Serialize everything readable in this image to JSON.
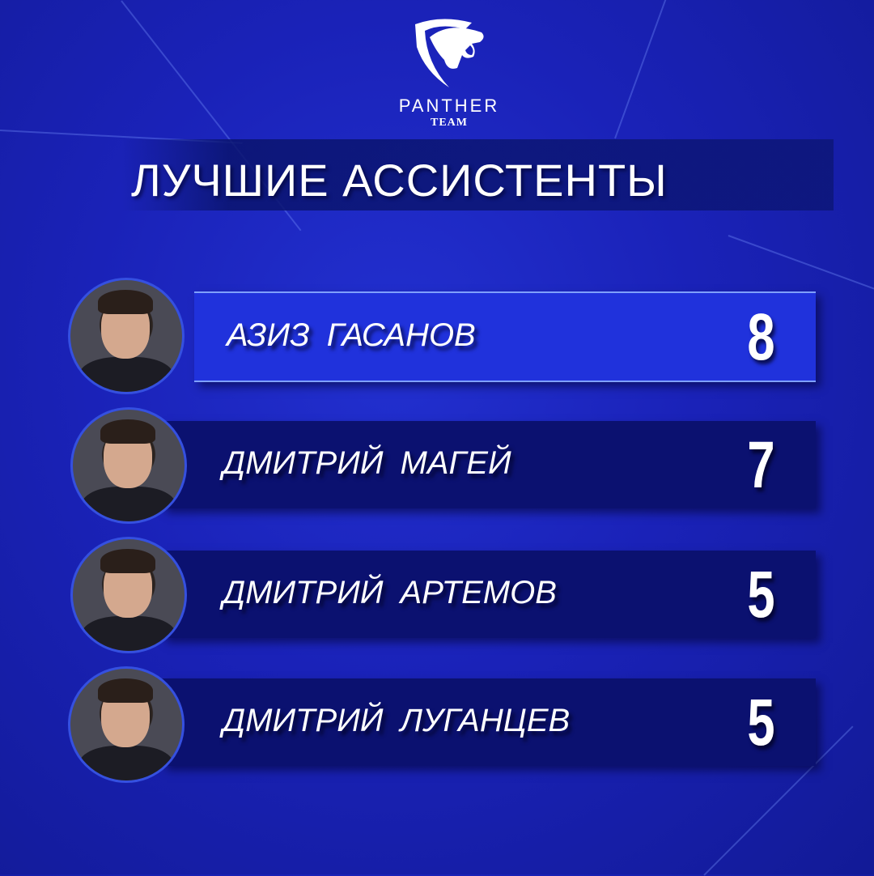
{
  "logo": {
    "brand": "PANTHER",
    "team": "TEAM",
    "icon": "panther-shield-logo"
  },
  "title": "ЛУЧШИЕ АССИСТЕНТЫ",
  "colors": {
    "background": "#1a22b8",
    "highlight_row": "#2032dc",
    "row": "#0b1170",
    "text": "#ffffff"
  },
  "players": [
    {
      "name": "АЗИЗ  ГАСАНОВ",
      "assists": "8"
    },
    {
      "name": "ДМИТРИЙ  МАГЕЙ",
      "assists": "7"
    },
    {
      "name": "ДМИТРИЙ  АРТЕМОВ",
      "assists": "5"
    },
    {
      "name": "ДМИТРИЙ  ЛУГАНЦЕВ",
      "assists": "5"
    }
  ]
}
